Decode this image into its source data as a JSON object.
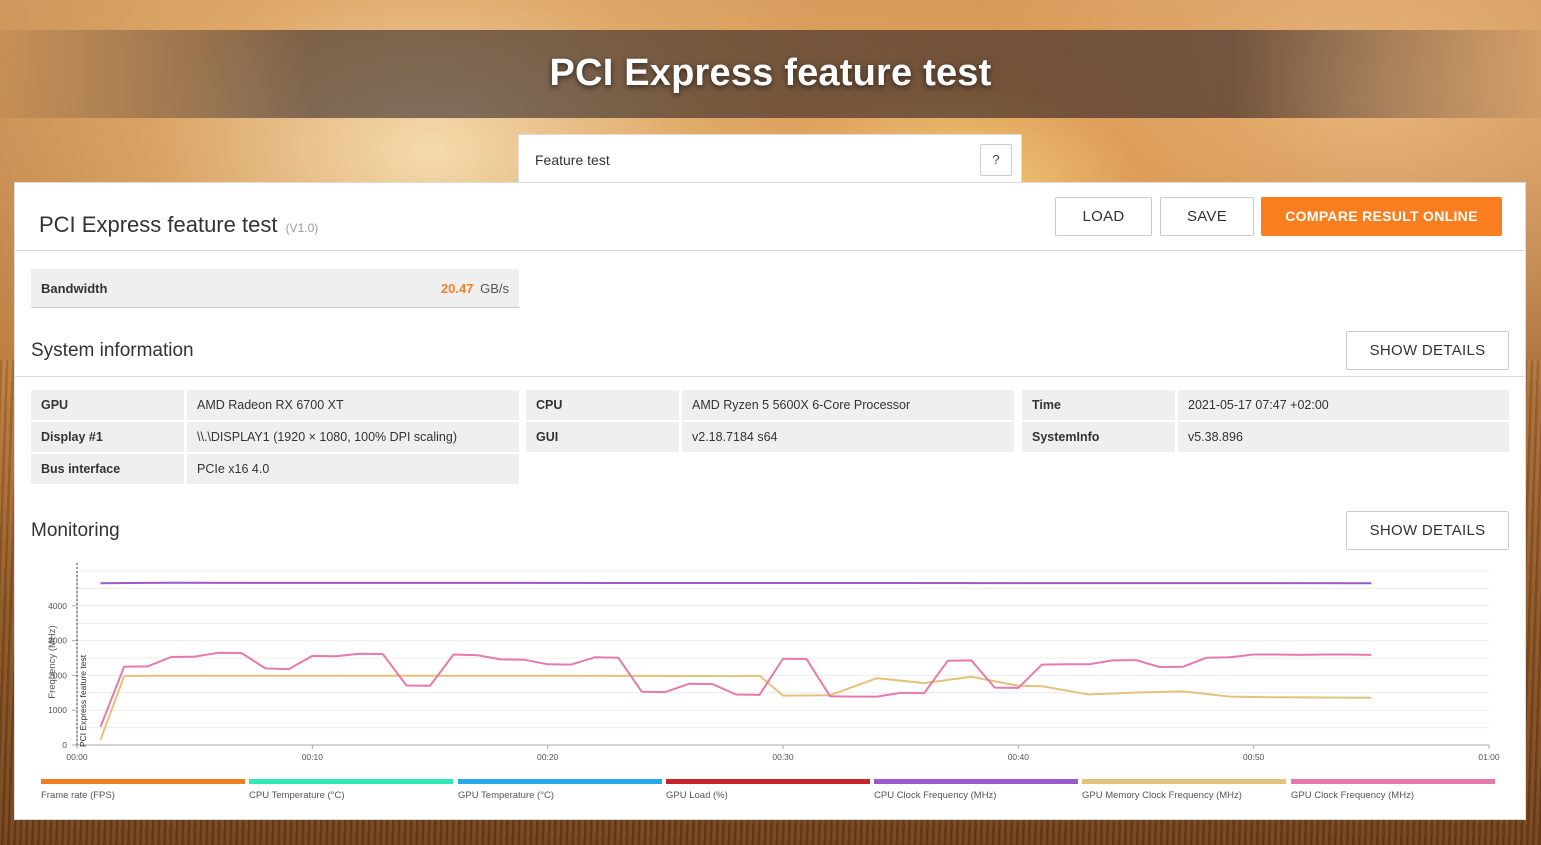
{
  "header": {
    "title": "PCI Express feature test",
    "selector_label": "Feature test",
    "help_label": "?"
  },
  "result": {
    "title": "PCI Express feature test",
    "version": "(V1.0)",
    "buttons": {
      "load": "LOAD",
      "save": "SAVE",
      "compare": "COMPARE RESULT ONLINE"
    },
    "score": {
      "name": "Bandwidth",
      "value": "20.47",
      "unit": "GB/s"
    }
  },
  "system_info": {
    "title": "System information",
    "show_details": "SHOW DETAILS",
    "rows": [
      {
        "key": "GPU",
        "value": "AMD Radeon RX 6700 XT"
      },
      {
        "key": "Display #1",
        "value": "\\\\.\\DISPLAY1 (1920 × 1080, 100% DPI scaling)"
      },
      {
        "key": "Bus interface",
        "value": "PCIe x16 4.0"
      },
      {
        "key": "CPU",
        "value": "AMD Ryzen 5 5600X 6-Core Processor"
      },
      {
        "key": "GUI",
        "value": "v2.18.7184 s64"
      },
      {
        "key": "Time",
        "value": "2021-05-17 07:47 +02:00"
      },
      {
        "key": "SystemInfo",
        "value": "v5.38.896"
      }
    ]
  },
  "monitoring": {
    "title": "Monitoring",
    "show_details": "SHOW DETAILS",
    "marker_label": "PCI Express feature test",
    "legend": [
      {
        "label": "Frame rate (FPS)",
        "color": "#f07c22"
      },
      {
        "label": "CPU Temperature (°C)",
        "color": "#2ee8b6"
      },
      {
        "label": "GPU Temperature (°C)",
        "color": "#27a9e8"
      },
      {
        "label": "GPU Load (%)",
        "color": "#c8252b"
      },
      {
        "label": "CPU Clock Frequency (MHz)",
        "color": "#9b59c9"
      },
      {
        "label": "GPU Memory Clock Frequency (MHz)",
        "color": "#e3c27a"
      },
      {
        "label": "GPU Clock Frequency (MHz)",
        "color": "#e77aab"
      }
    ]
  },
  "chart_data": {
    "type": "line",
    "ylabel": "Frequency (MHz)",
    "xlabel": "",
    "ylim": [
      0,
      5000
    ],
    "xlim": [
      0,
      60
    ],
    "yticks": [
      0,
      1000,
      2000,
      3000,
      4000
    ],
    "ytick_labels": [
      "0",
      "1000",
      "2000",
      "3000",
      "4000"
    ],
    "xticks": [
      0,
      10,
      20,
      30,
      40,
      50,
      60
    ],
    "xtick_labels": [
      "00:00",
      "00:10",
      "00:20",
      "00:30",
      "00:40",
      "00:50",
      "01:00"
    ],
    "grid": true,
    "series": [
      {
        "name": "CPU Clock Frequency (MHz)",
        "color": "#9b59c9",
        "x": [
          1,
          4,
          55
        ],
        "y": [
          4650,
          4660,
          4650
        ]
      },
      {
        "name": "GPU Memory Clock Frequency (MHz)",
        "color": "#e3c27a",
        "x": [
          1,
          2,
          3,
          10,
          20,
          28,
          29,
          30,
          32,
          34,
          36,
          38,
          40,
          41,
          43,
          45,
          47,
          49,
          51,
          55
        ],
        "y": [
          150,
          1980,
          1990,
          1990,
          1990,
          1980,
          1990,
          1420,
          1430,
          1920,
          1780,
          1960,
          1700,
          1690,
          1450,
          1510,
          1540,
          1390,
          1370,
          1360
        ]
      },
      {
        "name": "GPU Clock Frequency (MHz)",
        "color": "#e77aab",
        "x": [
          1,
          2,
          3,
          4,
          5,
          6,
          7,
          8,
          9,
          10,
          11,
          12,
          13,
          14,
          15,
          16,
          17,
          18,
          19,
          20,
          21,
          22,
          23,
          24,
          25,
          26,
          27,
          28,
          29,
          30,
          31,
          32,
          33,
          34,
          35,
          36,
          37,
          38,
          39,
          40,
          41,
          42,
          43,
          44,
          45,
          46,
          47,
          48,
          49,
          50,
          51,
          52,
          53,
          54,
          55
        ],
        "y": [
          520,
          2250,
          2260,
          2530,
          2540,
          2650,
          2640,
          2200,
          2180,
          2560,
          2550,
          2620,
          2610,
          1710,
          1700,
          2600,
          2580,
          2460,
          2450,
          2320,
          2310,
          2520,
          2510,
          1530,
          1520,
          1760,
          1750,
          1450,
          1440,
          2480,
          2470,
          1400,
          1390,
          1390,
          1500,
          1490,
          2420,
          2430,
          1650,
          1640,
          2310,
          2320,
          2320,
          2430,
          2440,
          2240,
          2250,
          2510,
          2520,
          2600,
          2600,
          2590,
          2600,
          2600,
          2590
        ]
      }
    ]
  }
}
